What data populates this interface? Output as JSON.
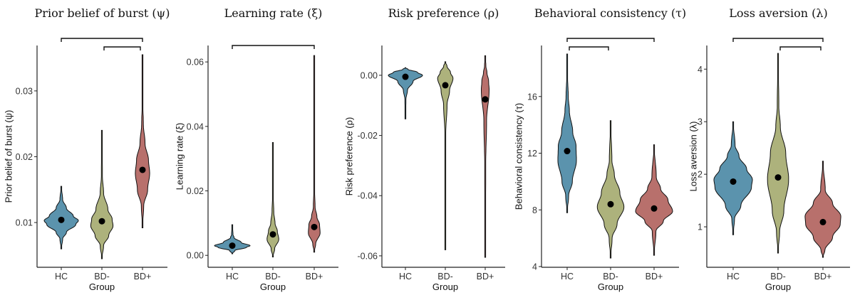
{
  "chart_data": [
    {
      "type": "violin",
      "title": "Prior belief of burst (ψ)",
      "xlabel": "Group",
      "ylabel": "Prior belief of burst (ψ)",
      "categories": [
        "HC",
        "BD-",
        "BD+"
      ],
      "ylim": [
        0.0032,
        0.0369
      ],
      "yticks": [
        0.01,
        0.02,
        0.03
      ],
      "ytick_labels": [
        "0.01",
        "0.02",
        "0.03"
      ],
      "comparisons": [
        [
          "HC",
          "BD+"
        ],
        [
          "BD-",
          "BD+"
        ]
      ],
      "violins": [
        {
          "group": "HC",
          "mean": 0.0104,
          "min": 0.006,
          "max": 0.0155,
          "density": [
            [
              0.006,
              0
            ],
            [
              0.0075,
              0.08
            ],
            [
              0.0085,
              0.3
            ],
            [
              0.0097,
              0.85
            ],
            [
              0.0103,
              1
            ],
            [
              0.011,
              0.7
            ],
            [
              0.0122,
              0.3
            ],
            [
              0.0135,
              0.08
            ],
            [
              0.0155,
              0
            ]
          ]
        },
        {
          "group": "BD-",
          "mean": 0.0102,
          "min": 0.0045,
          "max": 0.024,
          "density": [
            [
              0.0045,
              0
            ],
            [
              0.0065,
              0.1
            ],
            [
              0.008,
              0.4
            ],
            [
              0.0095,
              0.65
            ],
            [
              0.0105,
              0.6
            ],
            [
              0.012,
              0.35
            ],
            [
              0.0145,
              0.1
            ],
            [
              0.017,
              0.03
            ],
            [
              0.024,
              0
            ]
          ]
        },
        {
          "group": "BD+",
          "mean": 0.018,
          "min": 0.0092,
          "max": 0.0355,
          "density": [
            [
              0.0092,
              0
            ],
            [
              0.0125,
              0.07
            ],
            [
              0.015,
              0.3
            ],
            [
              0.0175,
              0.42
            ],
            [
              0.0195,
              0.35
            ],
            [
              0.022,
              0.15
            ],
            [
              0.025,
              0.05
            ],
            [
              0.028,
              0.02
            ],
            [
              0.0355,
              0
            ]
          ]
        }
      ]
    },
    {
      "type": "violin",
      "title": "Learning rate (ξ)",
      "xlabel": "Group",
      "ylabel": "Learning rate (ξ)",
      "categories": [
        "HC",
        "BD-",
        "BD+"
      ],
      "ylim": [
        -0.0037,
        0.0651
      ],
      "yticks": [
        0.0,
        0.02,
        0.04,
        0.06
      ],
      "ytick_labels": [
        "0.00",
        "0.02",
        "0.04",
        "0.06"
      ],
      "comparisons": [
        [
          "HC",
          "BD+"
        ]
      ],
      "violins": [
        {
          "group": "HC",
          "mean": 0.003,
          "min": 0.0005,
          "max": 0.0095,
          "density": [
            [
              0.0005,
              0
            ],
            [
              0.0015,
              0.15
            ],
            [
              0.0025,
              0.8
            ],
            [
              0.003,
              1
            ],
            [
              0.004,
              0.5
            ],
            [
              0.0055,
              0.1
            ],
            [
              0.0065,
              0.04
            ],
            [
              0.0095,
              0
            ]
          ]
        },
        {
          "group": "BD-",
          "mean": 0.0065,
          "min": -0.0005,
          "max": 0.035,
          "density": [
            [
              -0.0005,
              0
            ],
            [
              0.002,
              0.1
            ],
            [
              0.005,
              0.33
            ],
            [
              0.0075,
              0.25
            ],
            [
              0.01,
              0.12
            ],
            [
              0.0135,
              0.05
            ],
            [
              0.018,
              0.02
            ],
            [
              0.035,
              0
            ]
          ]
        },
        {
          "group": "BD+",
          "mean": 0.0088,
          "min": 0.001,
          "max": 0.062,
          "density": [
            [
              0.001,
              0
            ],
            [
              0.0035,
              0.08
            ],
            [
              0.007,
              0.33
            ],
            [
              0.0095,
              0.3
            ],
            [
              0.012,
              0.15
            ],
            [
              0.015,
              0.05
            ],
            [
              0.02,
              0.02
            ],
            [
              0.062,
              0
            ]
          ]
        }
      ]
    },
    {
      "type": "violin",
      "title": "Risk preference (ρ)",
      "xlabel": "Group",
      "ylabel": "Risk preference (ρ)",
      "categories": [
        "HC",
        "BD-",
        "BD+"
      ],
      "ylim": [
        -0.0638,
        0.0099
      ],
      "yticks": [
        0.0,
        -0.02,
        -0.04,
        -0.06
      ],
      "ytick_labels": [
        "0.00",
        "-0.02",
        "-0.04",
        "-0.06"
      ],
      "comparisons": [],
      "violins": [
        {
          "group": "HC",
          "mean": -0.0005,
          "min": -0.0145,
          "max": 0.0025,
          "density": [
            [
              -0.0145,
              0
            ],
            [
              -0.008,
              0.03
            ],
            [
              -0.005,
              0.12
            ],
            [
              -0.002,
              0.45
            ],
            [
              0,
              1
            ],
            [
              0.001,
              0.7
            ],
            [
              0.002,
              0.15
            ],
            [
              0.0025,
              0
            ]
          ]
        },
        {
          "group": "BD-",
          "mean": -0.0033,
          "min": -0.058,
          "max": 0.0045,
          "density": [
            [
              -0.058,
              0
            ],
            [
              -0.02,
              0.02
            ],
            [
              -0.01,
              0.1
            ],
            [
              -0.005,
              0.25
            ],
            [
              -0.001,
              0.45
            ],
            [
              0.001,
              0.3
            ],
            [
              0.003,
              0.1
            ],
            [
              0.0045,
              0
            ]
          ]
        },
        {
          "group": "BD+",
          "mean": -0.008,
          "min": -0.0605,
          "max": 0.0065,
          "density": [
            [
              -0.0605,
              0
            ],
            [
              -0.03,
              0.03
            ],
            [
              -0.015,
              0.08
            ],
            [
              -0.005,
              0.23
            ],
            [
              -0.002,
              0.2
            ],
            [
              0.001,
              0.1
            ],
            [
              0.003,
              0.04
            ],
            [
              0.0065,
              0
            ]
          ]
        }
      ]
    },
    {
      "type": "violin",
      "title": "Behavioral consistency (τ)",
      "xlabel": "Group",
      "ylabel": "Behavioral consistency (τ)",
      "categories": [
        "HC",
        "BD-",
        "BD+"
      ],
      "ylim": [
        3.95,
        19.6
      ],
      "yticks": [
        4,
        8,
        12,
        16
      ],
      "ytick_labels": [
        "4",
        "8",
        "12",
        "16"
      ],
      "comparisons": [
        [
          "HC",
          "BD+"
        ],
        [
          "HC",
          "BD-"
        ]
      ],
      "violins": [
        {
          "group": "HC",
          "mean": 12.15,
          "min": 7.8,
          "max": 19,
          "density": [
            [
              7.8,
              0
            ],
            [
              9,
              0.08
            ],
            [
              10,
              0.28
            ],
            [
              11.5,
              0.5
            ],
            [
              12.5,
              0.48
            ],
            [
              13.5,
              0.3
            ],
            [
              15,
              0.12
            ],
            [
              16,
              0.06
            ],
            [
              17.5,
              0.02
            ],
            [
              19,
              0
            ]
          ]
        },
        {
          "group": "BD-",
          "mean": 8.4,
          "min": 4.6,
          "max": 14.3,
          "density": [
            [
              4.6,
              0
            ],
            [
              6,
              0.08
            ],
            [
              7,
              0.35
            ],
            [
              8.2,
              0.72
            ],
            [
              9.2,
              0.5
            ],
            [
              10.5,
              0.2
            ],
            [
              11.5,
              0.07
            ],
            [
              14.3,
              0
            ]
          ]
        },
        {
          "group": "BD+",
          "mean": 8.1,
          "min": 4.8,
          "max": 12.6,
          "density": [
            [
              4.8,
              0
            ],
            [
              6.5,
              0.1
            ],
            [
              7.2,
              0.5
            ],
            [
              7.9,
              1
            ],
            [
              8.7,
              0.75
            ],
            [
              9.5,
              0.35
            ],
            [
              10.3,
              0.12
            ],
            [
              12.6,
              0
            ]
          ]
        }
      ]
    },
    {
      "type": "violin",
      "title": "Loss aversion (λ)",
      "xlabel": "Group",
      "ylabel": "Loss aversion (λ)",
      "categories": [
        "HC",
        "BD-",
        "BD+"
      ],
      "ylim": [
        0.23,
        4.45
      ],
      "yticks": [
        1,
        2,
        3,
        4
      ],
      "ytick_labels": [
        "1",
        "2",
        "3",
        "4"
      ],
      "comparisons": [
        [
          "HC",
          "BD+"
        ],
        [
          "BD-",
          "BD+"
        ]
      ],
      "violins": [
        {
          "group": "HC",
          "mean": 1.86,
          "min": 0.85,
          "max": 3.0,
          "density": [
            [
              0.85,
              0
            ],
            [
              1.15,
              0.07
            ],
            [
              1.4,
              0.4
            ],
            [
              1.75,
              0.95
            ],
            [
              1.9,
              1
            ],
            [
              2.1,
              0.7
            ],
            [
              2.35,
              0.3
            ],
            [
              2.55,
              0.1
            ],
            [
              3.0,
              0
            ]
          ]
        },
        {
          "group": "BD-",
          "mean": 1.94,
          "min": 0.5,
          "max": 4.3,
          "density": [
            [
              0.5,
              0
            ],
            [
              0.9,
              0.08
            ],
            [
              1.3,
              0.3
            ],
            [
              1.9,
              0.55
            ],
            [
              2.4,
              0.4
            ],
            [
              2.9,
              0.12
            ],
            [
              3.3,
              0.04
            ],
            [
              4.3,
              0
            ]
          ]
        },
        {
          "group": "BD+",
          "mean": 1.09,
          "min": 0.42,
          "max": 2.25,
          "density": [
            [
              0.42,
              0
            ],
            [
              0.55,
              0.1
            ],
            [
              0.8,
              0.5
            ],
            [
              1.05,
              0.9
            ],
            [
              1.2,
              0.93
            ],
            [
              1.45,
              0.5
            ],
            [
              1.7,
              0.12
            ],
            [
              2.25,
              0
            ]
          ]
        }
      ]
    }
  ],
  "colors": {
    "HC": "#5b93ad",
    "BD-": "#adb27c",
    "BD+": "#b8706c",
    "mean_dot": "#000000"
  }
}
